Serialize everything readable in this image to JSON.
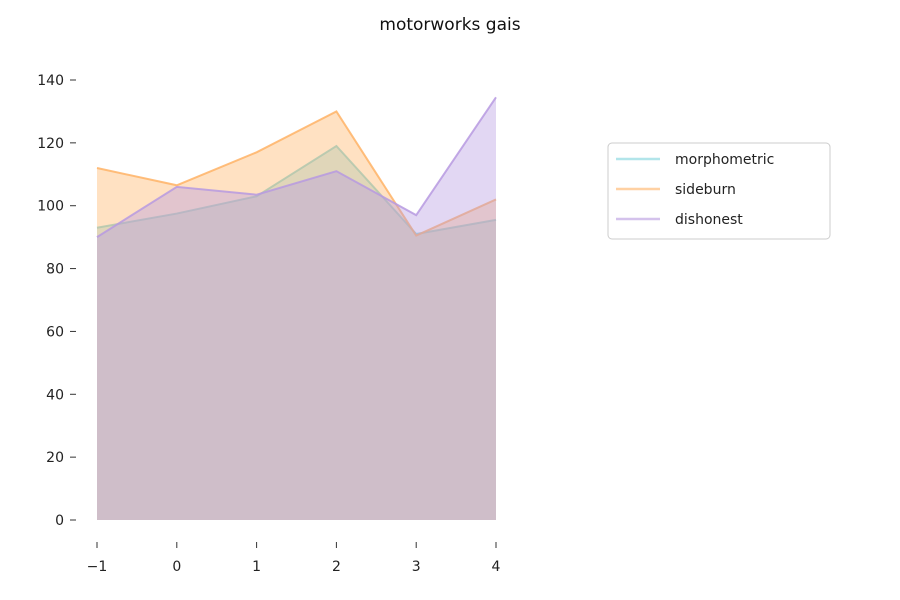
{
  "chart_data": {
    "type": "area",
    "title": "motorworks gais",
    "xlabel": "",
    "ylabel": "",
    "x": [
      -1,
      0,
      1,
      2,
      3,
      4
    ],
    "x_tick_labels": [
      "−1",
      "0",
      "1",
      "2",
      "3",
      "4"
    ],
    "y_ticks": [
      0,
      20,
      40,
      60,
      80,
      100,
      120,
      140
    ],
    "y_tick_labels": [
      "0",
      "20",
      "40",
      "60",
      "80",
      "100",
      "120",
      "140"
    ],
    "xlim": [
      -1,
      4
    ],
    "ylim": [
      0,
      140
    ],
    "grid": false,
    "legend_position": "right",
    "series": [
      {
        "name": "morphometric",
        "color": "#7fd3dc",
        "values": [
          93,
          97.5,
          103,
          119,
          91,
          95.5
        ]
      },
      {
        "name": "sideburn",
        "color": "#ffb366",
        "values": [
          112,
          106.5,
          117,
          130,
          90.5,
          102
        ]
      },
      {
        "name": "dishonest",
        "color": "#b79ae0",
        "values": [
          90,
          106,
          103.5,
          111,
          97,
          134.5
        ]
      }
    ]
  }
}
